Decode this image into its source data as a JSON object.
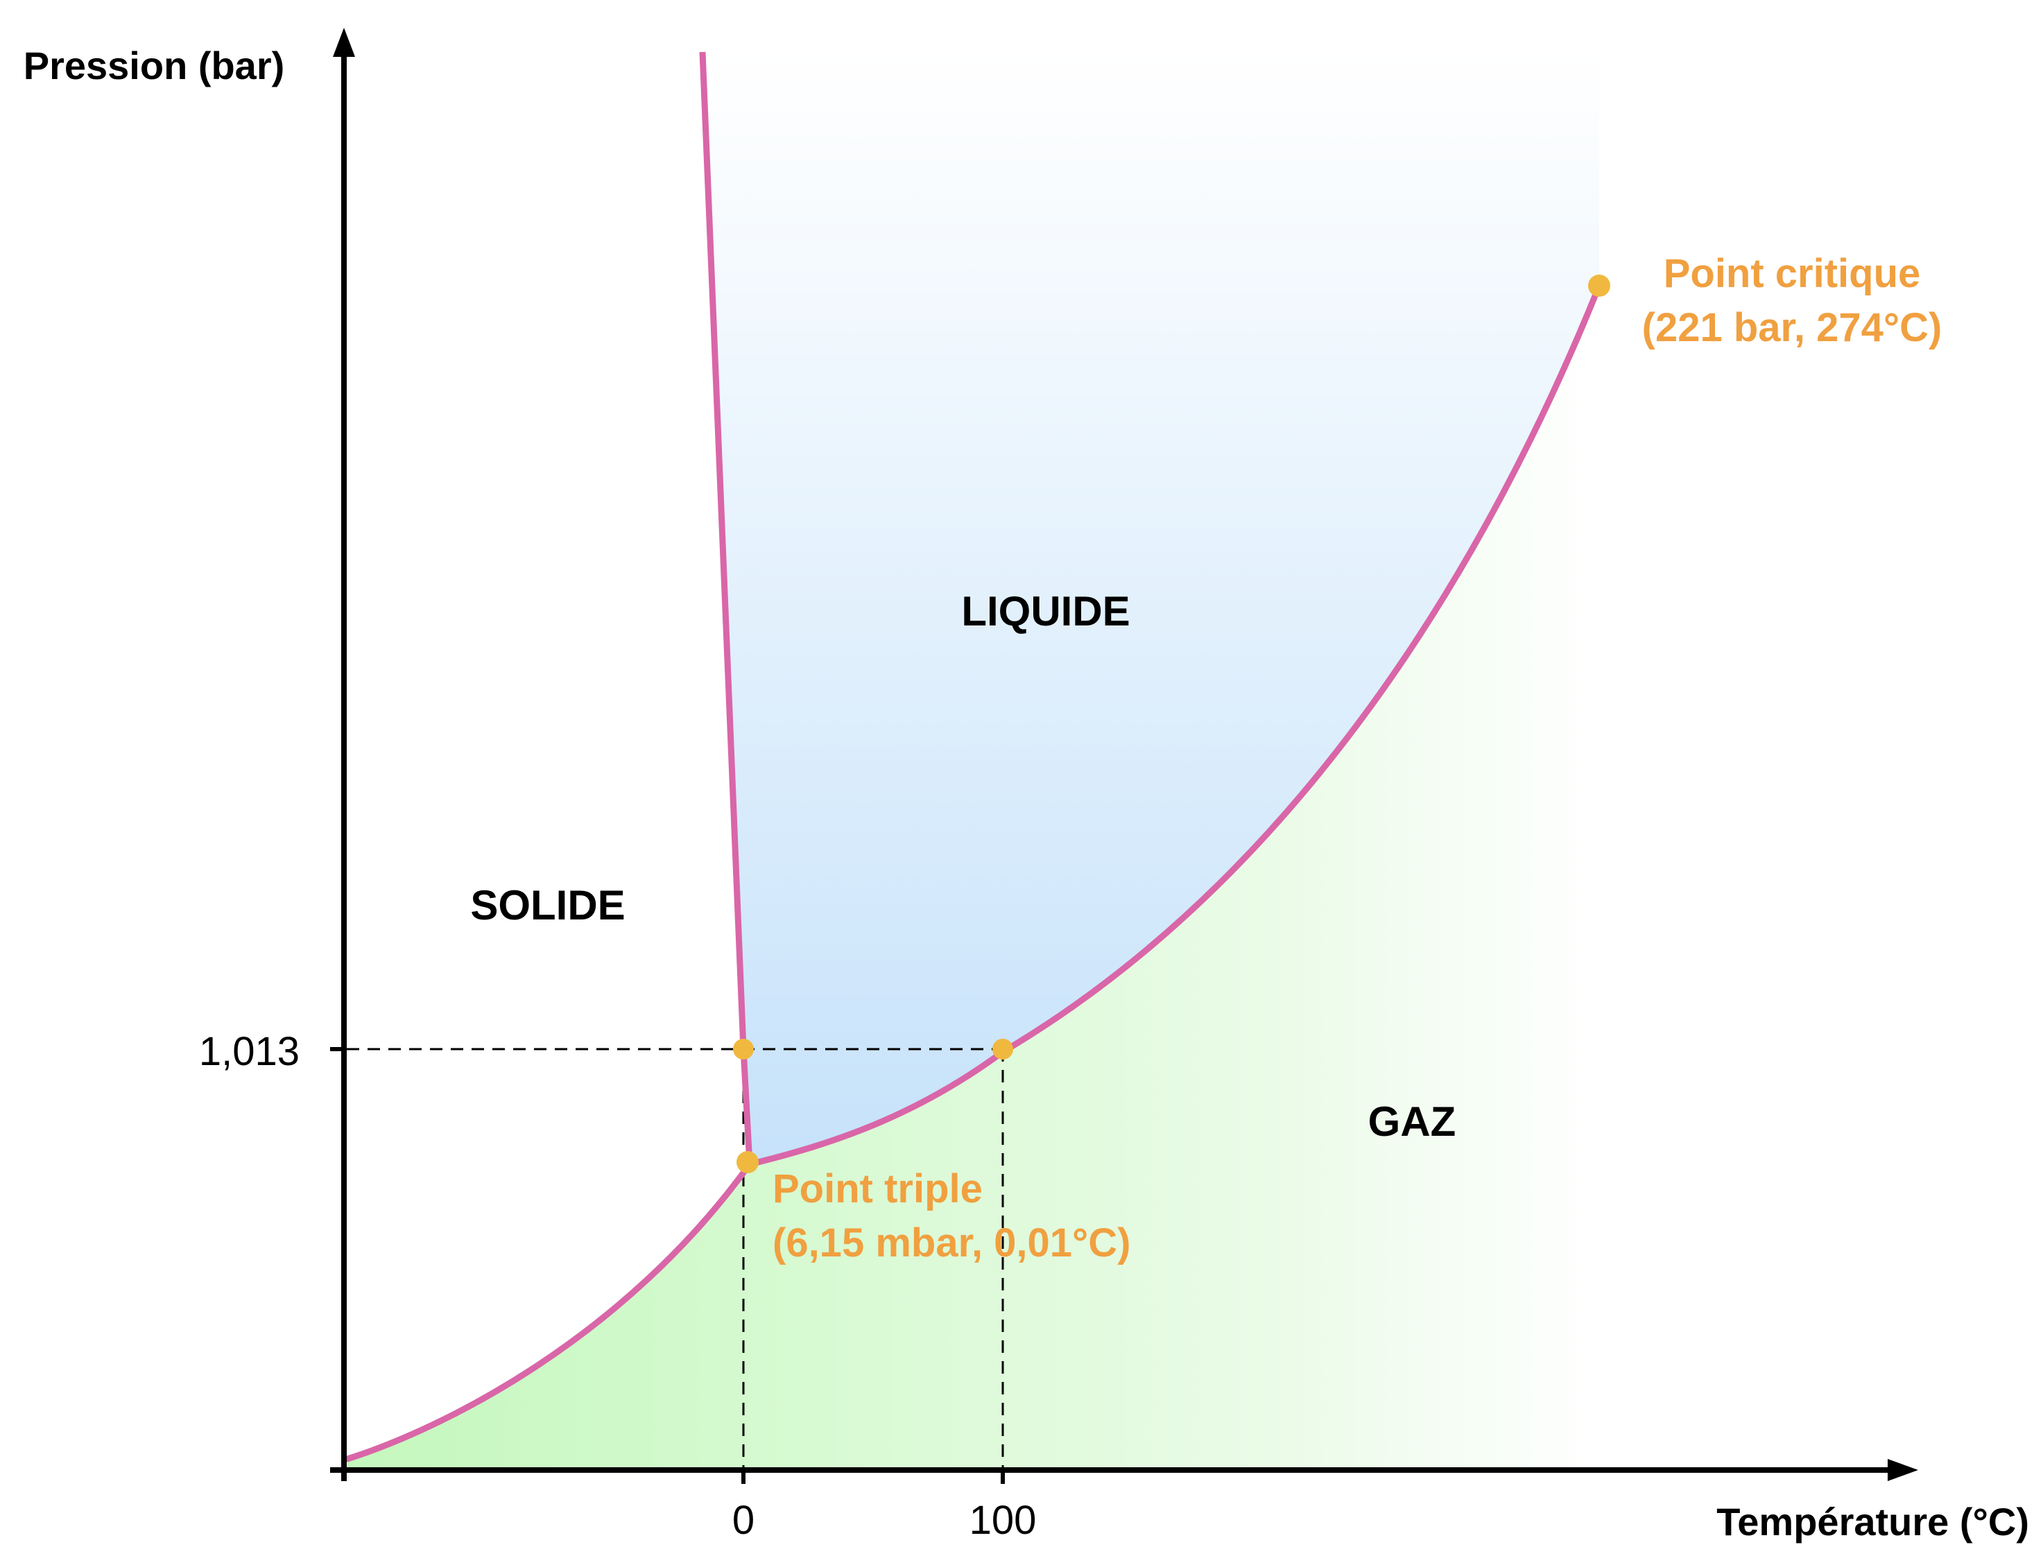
{
  "axes": {
    "y_label": "Pression (bar)",
    "x_label": "Température (°C)"
  },
  "ticks": {
    "y_1013": "1,013",
    "x_0": "0",
    "x_100": "100"
  },
  "regions": {
    "solid": "SOLIDE",
    "liquid": "LIQUIDE",
    "gas": "GAZ"
  },
  "points": {
    "critical": {
      "line1": "Point critique",
      "line2": "(221 bar, 274°C)"
    },
    "triple": {
      "line1": "Point triple",
      "line2": "(6,15 mbar, 0,01°C)"
    }
  },
  "colors": {
    "curve": "#d966a8",
    "point": "#f0b83f",
    "annotation": "#f0a040",
    "liquid_fill": "#c6e2fa",
    "gas_fill": "#c4f8bd",
    "axis": "#000000"
  }
}
